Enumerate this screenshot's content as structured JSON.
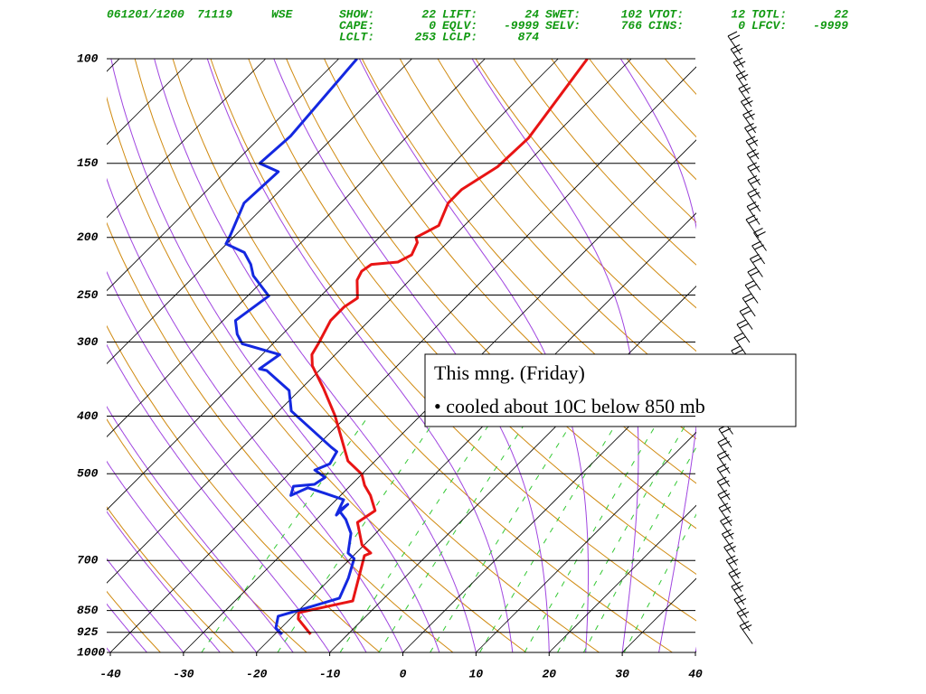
{
  "chart_data": {
    "type": "skewt",
    "date": "061201/1200",
    "station_id": "71119",
    "station": "WSE",
    "indices": [
      {
        "label": "SHOW:",
        "value": 22
      },
      {
        "label": "LIFT:",
        "value": 24
      },
      {
        "label": "SWET:",
        "value": 102
      },
      {
        "label": "VTOT:",
        "value": 12
      },
      {
        "label": "TOTL:",
        "value": 22
      },
      {
        "label": "CAPE:",
        "value": 0
      },
      {
        "label": "EQLV:",
        "value": -9999
      },
      {
        "label": "SELV:",
        "value": 766
      },
      {
        "label": "CINS:",
        "value": 0
      },
      {
        "label": "LFCV:",
        "value": -9999
      },
      {
        "label": "LCLT:",
        "value": 253
      },
      {
        "label": "LCLP:",
        "value": 874
      }
    ],
    "annotation": [
      "This mng. (Friday)",
      "• cooled about 10C below 850 mb"
    ],
    "xlim": [
      -40,
      40
    ],
    "xticks": [
      -40,
      -30,
      -20,
      -10,
      0,
      10,
      20,
      30,
      40
    ],
    "ylim": [
      1000,
      100
    ],
    "ylog": true,
    "yticks": [
      100,
      150,
      200,
      250,
      300,
      400,
      500,
      700,
      850,
      925,
      1000
    ],
    "grid": true,
    "series": [
      {
        "color": "#e81414",
        "pressure": [
          932,
          878,
          857,
          819,
          687,
          680,
          659,
          604,
          577,
          544,
          523,
          501,
          476,
          399,
          359,
          329,
          315,
          302,
          276,
          262,
          253,
          236,
          228,
          222,
          220,
          214,
          204,
          200,
          191,
          175,
          166,
          152,
          136,
          100
        ],
        "values": [
          -15.1,
          -18.9,
          -19.7,
          -13.9,
          -18.5,
          -18.0,
          -20.3,
          -24.0,
          -23.2,
          -25.9,
          -28.1,
          -30.0,
          -33.7,
          -41.7,
          -47.0,
          -51.6,
          -53.2,
          -53.8,
          -55.3,
          -55.3,
          -54.7,
          -57.2,
          -57.8,
          -57.4,
          -54.1,
          -53.2,
          -54.1,
          -55.0,
          -53.5,
          -55.3,
          -55.3,
          -53.5,
          -53.2,
          -56.0
        ]
      },
      {
        "color": "#1428e0",
        "pressure": [
          932,
          910,
          869,
          839,
          810,
          750,
          695,
          680,
          630,
          597,
          577,
          563,
          587,
          553,
          540,
          528,
          544,
          525,
          521,
          507,
          493,
          481,
          459,
          451,
          392,
          362,
          335,
          333,
          315,
          302,
          291,
          276,
          251,
          232,
          222,
          212,
          205,
          198,
          175,
          155,
          150,
          135,
          100
        ],
        "values": [
          -19.0,
          -20.7,
          -22.0,
          -19.0,
          -16.1,
          -17.6,
          -19.5,
          -21.1,
          -23.4,
          -26.0,
          -28.1,
          -27.8,
          -27.9,
          -29.0,
          -32.3,
          -35.5,
          -36.8,
          -37.7,
          -35.1,
          -34.6,
          -37.0,
          -35.8,
          -36.5,
          -37.9,
          -48.3,
          -51.4,
          -57.2,
          -58.4,
          -57.6,
          -64.2,
          -66.2,
          -68.3,
          -67.1,
          -72.0,
          -73.9,
          -76.4,
          -80.1,
          -80.7,
          -83.2,
          -82.8,
          -86.5,
          -86.0,
          -87.5
        ]
      }
    ]
  }
}
